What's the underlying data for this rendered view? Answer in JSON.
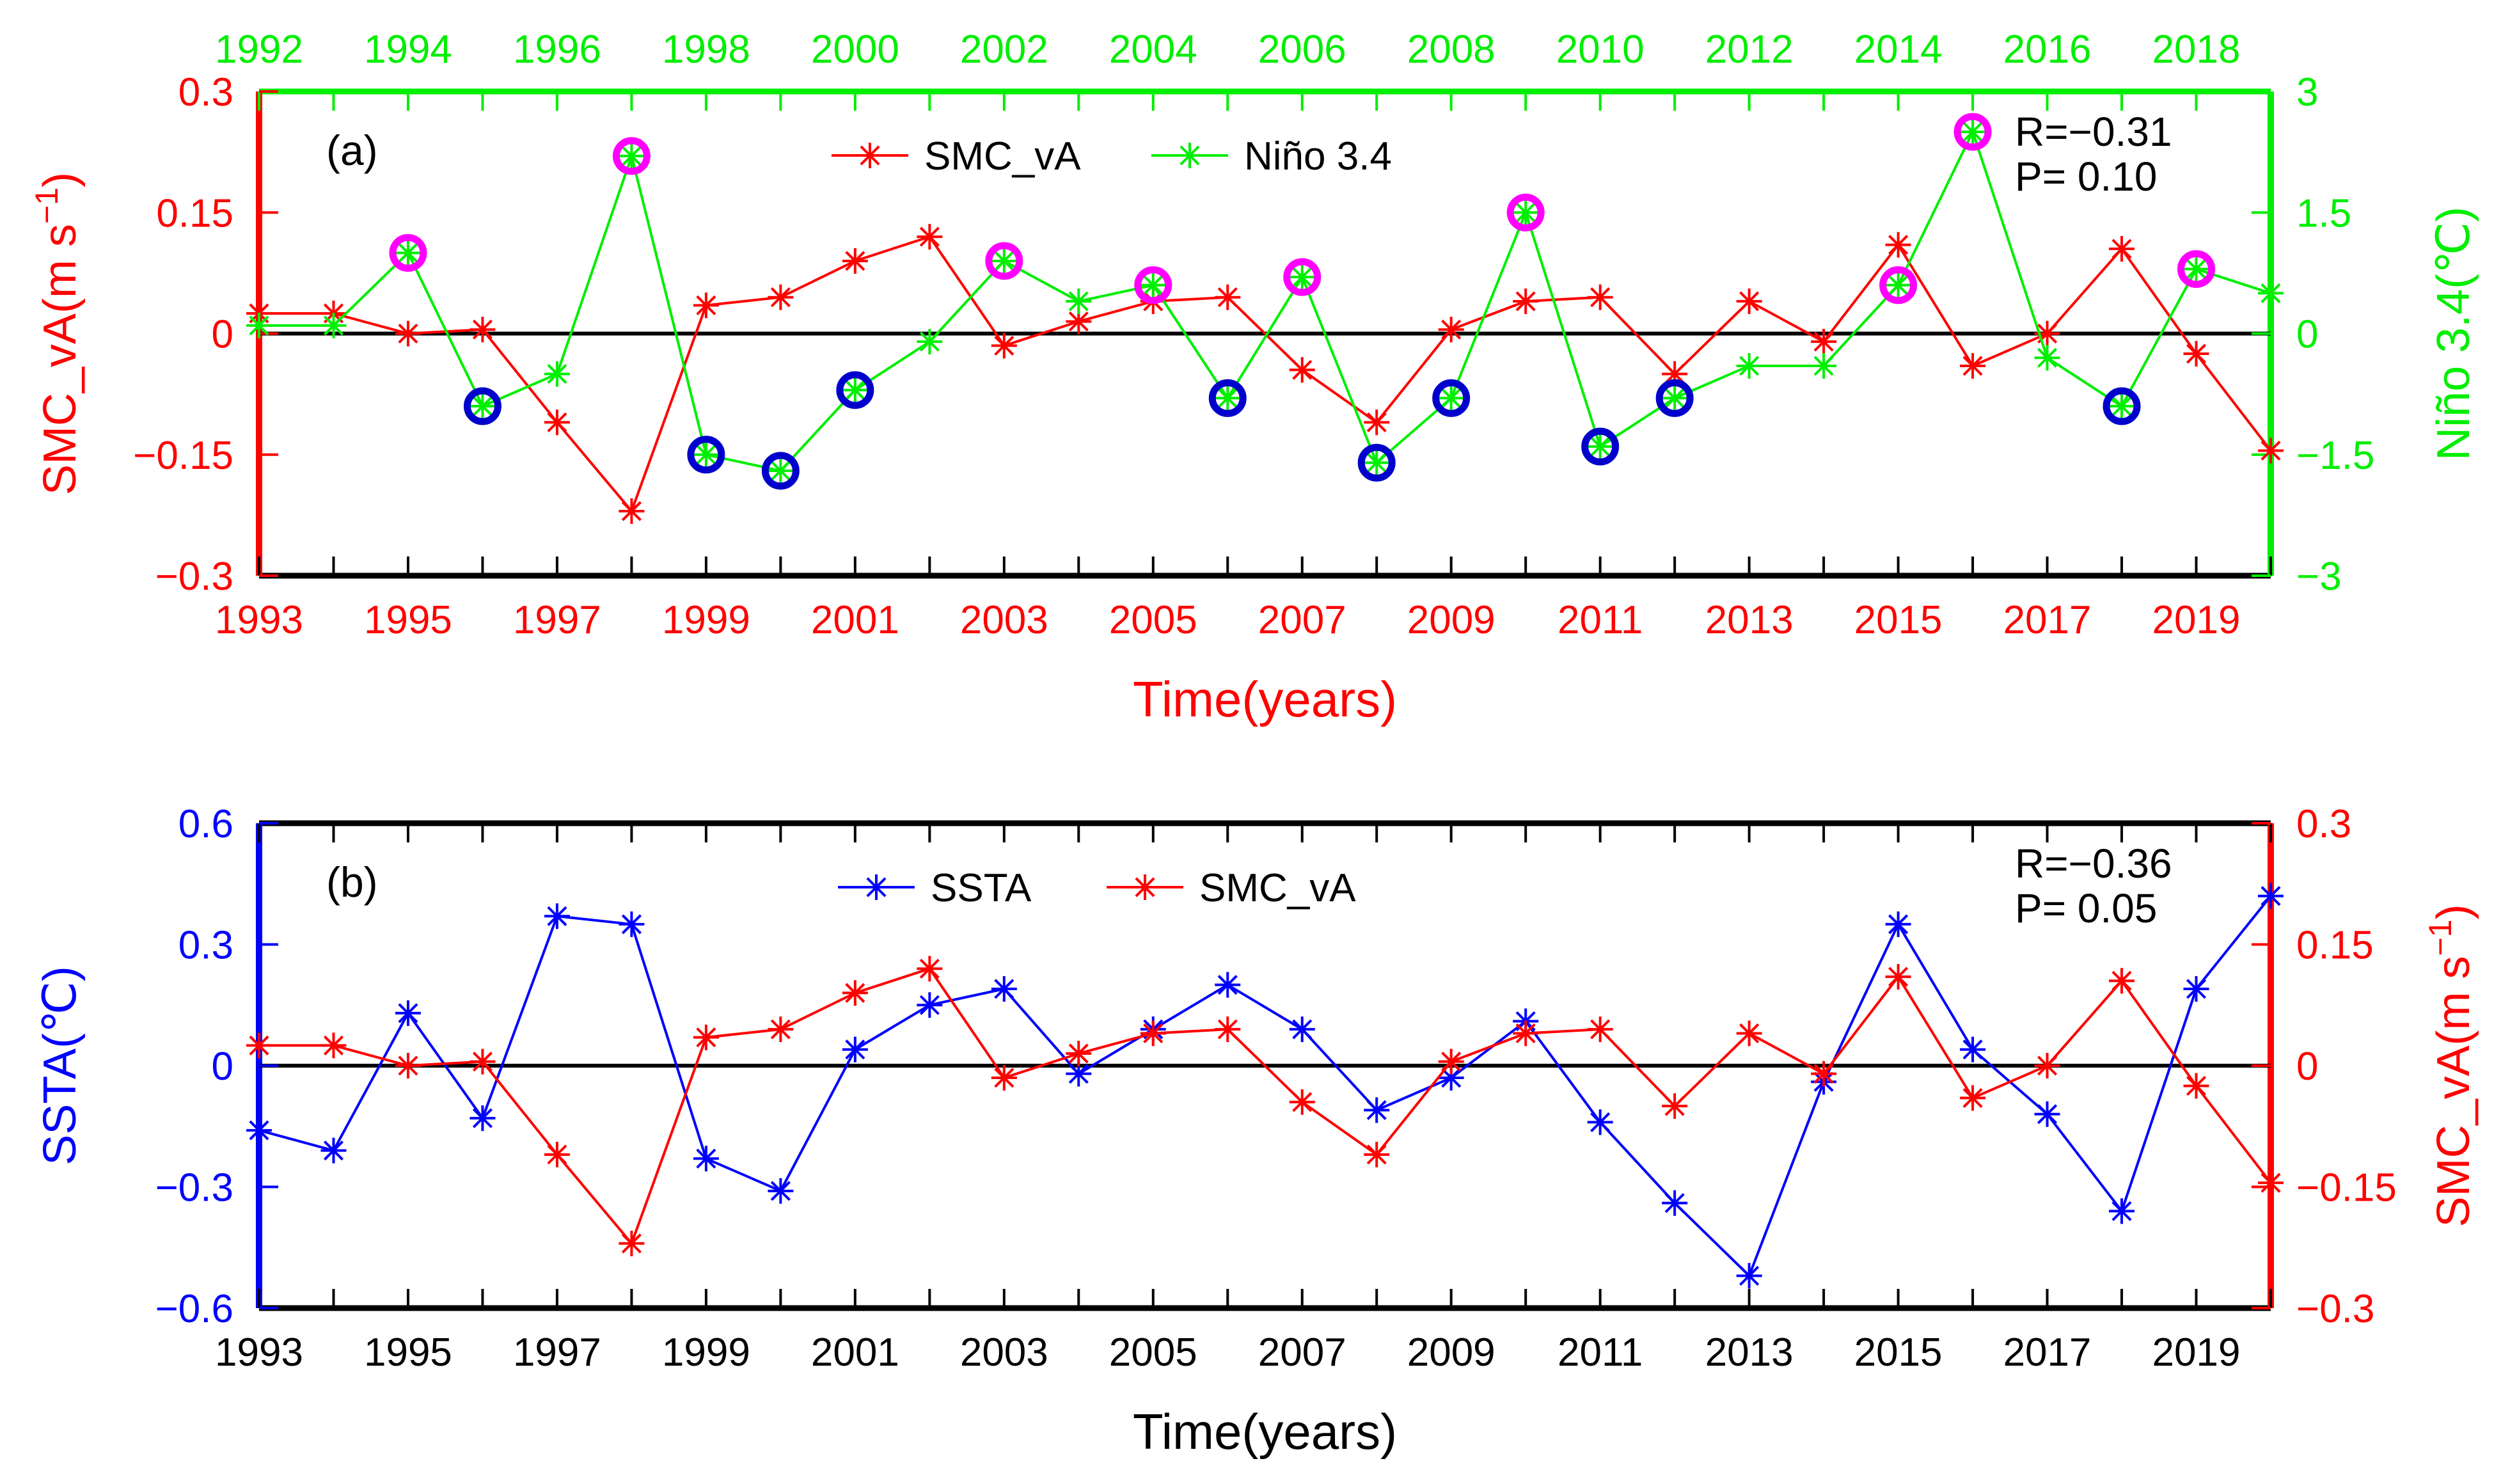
{
  "figure": {
    "colors": {
      "red": "#ff0000",
      "green": "#00ee00",
      "blue": "#0000ff",
      "magenta": "#ff00ff",
      "darkblue": "#0000cc",
      "black": "#000000"
    }
  },
  "chart_data": [
    {
      "type": "line",
      "panel_label": "(a)",
      "x": [
        1993,
        1994,
        1995,
        1996,
        1997,
        1998,
        1999,
        2000,
        2001,
        2002,
        2003,
        2004,
        2005,
        2006,
        2007,
        2008,
        2009,
        2010,
        2011,
        2012,
        2013,
        2014,
        2015,
        2016,
        2017,
        2018,
        2019,
        2020
      ],
      "xlim": [
        1993,
        2020
      ],
      "x_tick_labels": [
        "1993",
        "1995",
        "1997",
        "1999",
        "2001",
        "2003",
        "2005",
        "2007",
        "2009",
        "2011",
        "2013",
        "2015",
        "2017",
        "2019"
      ],
      "xlabel": "Time(years)",
      "top_xlim": [
        1992,
        2019
      ],
      "top_tick_labels": [
        "1992",
        "1994",
        "1996",
        "1998",
        "2000",
        "2002",
        "2004",
        "2006",
        "2008",
        "2010",
        "2012",
        "2014",
        "2016",
        "2018"
      ],
      "ylabel_left": "SMC_vA(m s",
      "ylabel_left_sup": "−1",
      "ylabel_left_end": ")",
      "ylim_left": [
        -0.3,
        0.3
      ],
      "left_tick_labels": [
        "0.3",
        "0.15",
        "0",
        "−0.15",
        "−0.3"
      ],
      "ylabel_right": "Niño 3.4(℃)",
      "ylim_right": [
        -3,
        3
      ],
      "right_tick_labels": [
        "3",
        "1.5",
        "0",
        "−1.5",
        "−3"
      ],
      "annotation": [
        "R=−0.31",
        "P= 0.10"
      ],
      "series": [
        {
          "name": "SMC_vA",
          "axis": "left",
          "color": "#ff0000",
          "values": [
            0.025,
            0.025,
            0.0,
            0.005,
            -0.11,
            -0.22,
            0.035,
            0.045,
            0.09,
            0.12,
            -0.015,
            0.015,
            0.04,
            0.045,
            -0.045,
            -0.11,
            0.005,
            0.04,
            0.045,
            -0.05,
            0.04,
            -0.01,
            0.11,
            -0.04,
            0.0,
            0.105,
            -0.025,
            -0.145
          ]
        },
        {
          "name": "Niño 3.4",
          "axis": "right",
          "color": "#00ee00",
          "values": [
            0.1,
            0.1,
            1.0,
            -0.9,
            -0.5,
            2.2,
            -1.5,
            -1.7,
            -0.7,
            -0.1,
            0.9,
            0.4,
            0.6,
            -0.8,
            0.7,
            -1.6,
            -0.8,
            1.5,
            -1.4,
            -0.8,
            -0.4,
            -0.4,
            0.6,
            2.5,
            -0.3,
            -0.9,
            0.8,
            0.5
          ]
        }
      ],
      "highlight_warm_indices": [
        2,
        5,
        10,
        12,
        14,
        17,
        22,
        23,
        26
      ],
      "highlight_cold_indices": [
        3,
        6,
        7,
        8,
        13,
        15,
        16,
        18,
        19,
        25
      ]
    },
    {
      "type": "line",
      "panel_label": "(b)",
      "x": [
        1993,
        1994,
        1995,
        1996,
        1997,
        1998,
        1999,
        2000,
        2001,
        2002,
        2003,
        2004,
        2005,
        2006,
        2007,
        2008,
        2009,
        2010,
        2011,
        2012,
        2013,
        2014,
        2015,
        2016,
        2017,
        2018,
        2019,
        2020
      ],
      "xlim": [
        1993,
        2020
      ],
      "x_tick_labels": [
        "1993",
        "1995",
        "1997",
        "1999",
        "2001",
        "2003",
        "2005",
        "2007",
        "2009",
        "2011",
        "2013",
        "2015",
        "2017",
        "2019"
      ],
      "xlabel": "Time(years)",
      "ylabel_left": "SSTA(℃)",
      "ylim_left": [
        -0.6,
        0.6
      ],
      "left_tick_labels": [
        "0.6",
        "0.3",
        "0",
        "−0.3",
        "−0.6"
      ],
      "ylabel_right": "SMC_vA(m s",
      "ylabel_right_sup": "−1",
      "ylabel_right_end": ")",
      "ylim_right": [
        -0.3,
        0.3
      ],
      "right_tick_labels": [
        "0.3",
        "0.15",
        "0",
        "−0.15",
        "−0.3"
      ],
      "annotation": [
        "R=−0.36",
        "P= 0.05"
      ],
      "series": [
        {
          "name": "SSTA",
          "axis": "left",
          "color": "#0000ff",
          "values": [
            -0.16,
            -0.21,
            0.13,
            -0.13,
            0.37,
            0.35,
            -0.23,
            -0.31,
            0.04,
            0.15,
            0.19,
            -0.02,
            0.09,
            0.2,
            0.09,
            -0.11,
            -0.03,
            0.11,
            -0.14,
            -0.34,
            -0.52,
            -0.04,
            0.35,
            0.04,
            -0.12,
            -0.36,
            0.19,
            0.42
          ]
        },
        {
          "name": "SMC_vA",
          "axis": "right",
          "color": "#ff0000",
          "values": [
            0.025,
            0.025,
            0.0,
            0.005,
            -0.11,
            -0.22,
            0.035,
            0.045,
            0.09,
            0.12,
            -0.015,
            0.015,
            0.04,
            0.045,
            -0.045,
            -0.11,
            0.005,
            0.04,
            0.045,
            -0.05,
            0.04,
            -0.01,
            0.11,
            -0.04,
            0.0,
            0.105,
            -0.025,
            -0.145
          ]
        }
      ]
    }
  ]
}
